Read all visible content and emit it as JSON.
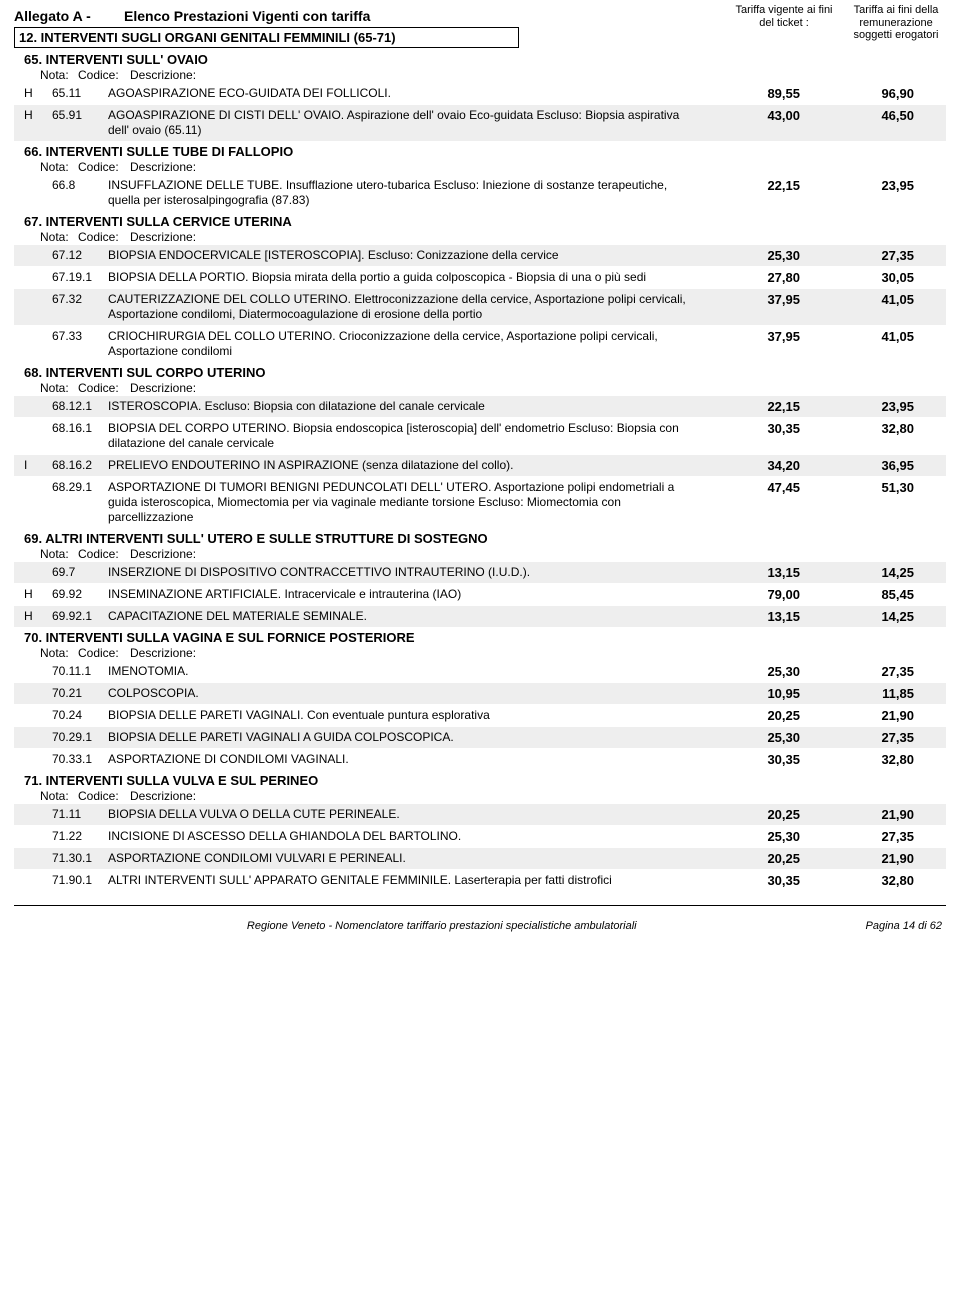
{
  "header": {
    "allegato": "Allegato A -",
    "elenco": "Elenco Prestazioni Vigenti con tariffa",
    "col1": "Tariffa vigente ai fini del ticket  :",
    "col2": "Tariffa ai fini della remunerazione soggetti erogatori"
  },
  "category": "12. INTERVENTI SUGLI ORGANI GENITALI FEMMINILI (65-71)",
  "notaHdr": {
    "nota": "Nota:",
    "codice": "Codice:",
    "descr": "Descrizione:"
  },
  "groups": [
    {
      "title": "65. INTERVENTI SULL' OVAIO",
      "rows": [
        {
          "s": false,
          "n": "H",
          "c": "65.11",
          "d": "AGOASPIRAZIONE ECO-GUIDATA DEI FOLLICOLI.",
          "p1": "89,55",
          "p2": "96,90"
        },
        {
          "s": true,
          "n": "H",
          "c": "65.91",
          "d": "AGOASPIRAZIONE DI CISTI DELL' OVAIO. Aspirazione dell' ovaio Eco-guidata  Escluso: Biopsia aspirativa dell' ovaio (65.11)",
          "p1": "43,00",
          "p2": "46,50"
        }
      ]
    },
    {
      "title": "66. INTERVENTI SULLE TUBE DI FALLOPIO",
      "rows": [
        {
          "s": false,
          "n": "",
          "c": "66.8",
          "d": "INSUFFLAZIONE DELLE TUBE. Insufflazione utero-tubarica Escluso: Iniezione di sostanze terapeutiche, quella per isterosalpingografia (87.83)",
          "p1": "22,15",
          "p2": "23,95"
        }
      ]
    },
    {
      "title": "67. INTERVENTI SULLA CERVICE UTERINA",
      "rows": [
        {
          "s": true,
          "n": "",
          "c": "67.12",
          "d": "BIOPSIA ENDOCERVICALE [ISTEROSCOPIA]. Escluso: Conizzazione della cervice",
          "p1": "25,30",
          "p2": "27,35"
        },
        {
          "s": false,
          "n": "",
          "c": "67.19.1",
          "d": "BIOPSIA DELLA PORTIO. Biopsia mirata della portio a guida colposcopica - Biopsia di una o più sedi",
          "p1": "27,80",
          "p2": "30,05"
        },
        {
          "s": true,
          "n": "",
          "c": "67.32",
          "d": "CAUTERIZZAZIONE DEL COLLO UTERINO. Elettroconizzazione della cervice, Asportazione polipi cervicali, Asportazione condilomi, Diatermocoagulazione di erosione della portio",
          "p1": "37,95",
          "p2": "41,05"
        },
        {
          "s": false,
          "n": "",
          "c": "67.33",
          "d": "CRIOCHIRURGIA DEL COLLO UTERINO. Crioconizzazione della cervice, Asportazione polipi cervicali, Asportazione condilomi",
          "p1": "37,95",
          "p2": "41,05"
        }
      ]
    },
    {
      "title": "68. INTERVENTI SUL CORPO UTERINO",
      "rows": [
        {
          "s": true,
          "n": "",
          "c": "68.12.1",
          "d": "ISTEROSCOPIA. Escluso: Biopsia con dilatazione del canale cervicale",
          "p1": "22,15",
          "p2": "23,95"
        },
        {
          "s": false,
          "n": "",
          "c": "68.16.1",
          "d": "BIOPSIA DEL CORPO UTERINO. Biopsia endoscopica [isteroscopia] dell' endometrio Escluso: Biopsia con dilatazione del canale cervicale",
          "p1": "30,35",
          "p2": "32,80"
        },
        {
          "s": true,
          "n": "I",
          "c": "68.16.2",
          "d": "PRELIEVO ENDOUTERINO IN ASPIRAZIONE (senza dilatazione del collo).",
          "p1": "34,20",
          "p2": "36,95"
        },
        {
          "s": false,
          "n": "",
          "c": "68.29.1",
          "d": "ASPORTAZIONE DI TUMORI BENIGNI PEDUNCOLATI DELL' UTERO. Asportazione polipi endometriali a guida isteroscopica, Miomectomia   per via vaginale mediante torsione Escluso: Miomectomia con parcellizzazione",
          "p1": "47,45",
          "p2": "51,30"
        }
      ]
    },
    {
      "title": "69. ALTRI INTERVENTI SULL' UTERO E SULLE STRUTTURE DI SOSTEGNO",
      "rows": [
        {
          "s": true,
          "n": "",
          "c": "69.7",
          "d": "INSERZIONE DI DISPOSITIVO CONTRACCETTIVO INTRAUTERINO (I.U.D.).",
          "p1": "13,15",
          "p2": "14,25"
        },
        {
          "s": false,
          "n": "H",
          "c": "69.92",
          "d": "INSEMINAZIONE ARTIFICIALE. Intracervicale e intrauterina (IAO)",
          "p1": "79,00",
          "p2": "85,45"
        },
        {
          "s": true,
          "n": "H",
          "c": "69.92.1",
          "d": "CAPACITAZIONE DEL MATERIALE SEMINALE.",
          "p1": "13,15",
          "p2": "14,25"
        }
      ]
    },
    {
      "title": "70. INTERVENTI SULLA VAGINA E SUL FORNICE POSTERIORE",
      "rows": [
        {
          "s": false,
          "n": "",
          "c": "70.11.1",
          "d": "IMENOTOMIA.",
          "p1": "25,30",
          "p2": "27,35"
        },
        {
          "s": true,
          "n": "",
          "c": "70.21",
          "d": "COLPOSCOPIA.",
          "p1": "10,95",
          "p2": "11,85"
        },
        {
          "s": false,
          "n": "",
          "c": "70.24",
          "d": "BIOPSIA DELLE PARETI VAGINALI. Con eventuale puntura esplorativa",
          "p1": "20,25",
          "p2": "21,90"
        },
        {
          "s": true,
          "n": "",
          "c": "70.29.1",
          "d": "BIOPSIA DELLE PARETI VAGINALI A GUIDA COLPOSCOPICA.",
          "p1": "25,30",
          "p2": "27,35"
        },
        {
          "s": false,
          "n": "",
          "c": "70.33.1",
          "d": "ASPORTAZIONE DI CONDILOMI VAGINALI.",
          "p1": "30,35",
          "p2": "32,80"
        }
      ]
    },
    {
      "title": "71. INTERVENTI SULLA VULVA E SUL PERINEO",
      "rows": [
        {
          "s": true,
          "n": "",
          "c": "71.11",
          "d": "BIOPSIA DELLA VULVA O DELLA CUTE PERINEALE.",
          "p1": "20,25",
          "p2": "21,90"
        },
        {
          "s": false,
          "n": "",
          "c": "71.22",
          "d": "INCISIONE DI ASCESSO DELLA GHIANDOLA DEL BARTOLINO.",
          "p1": "25,30",
          "p2": "27,35"
        },
        {
          "s": true,
          "n": "",
          "c": "71.30.1",
          "d": "ASPORTAZIONE CONDILOMI VULVARI E  PERINEALI.",
          "p1": "20,25",
          "p2": "21,90"
        },
        {
          "s": false,
          "n": "",
          "c": "71.90.1",
          "d": "ALTRI INTERVENTI SULL' APPARATO GENITALE FEMMINILE. Laserterapia per fatti distrofici",
          "p1": "30,35",
          "p2": "32,80"
        }
      ]
    }
  ],
  "footer": {
    "text": "Regione Veneto - Nomenclatore tariffario prestazioni specialistiche ambulatoriali",
    "page": "Pagina 14 di 62"
  }
}
